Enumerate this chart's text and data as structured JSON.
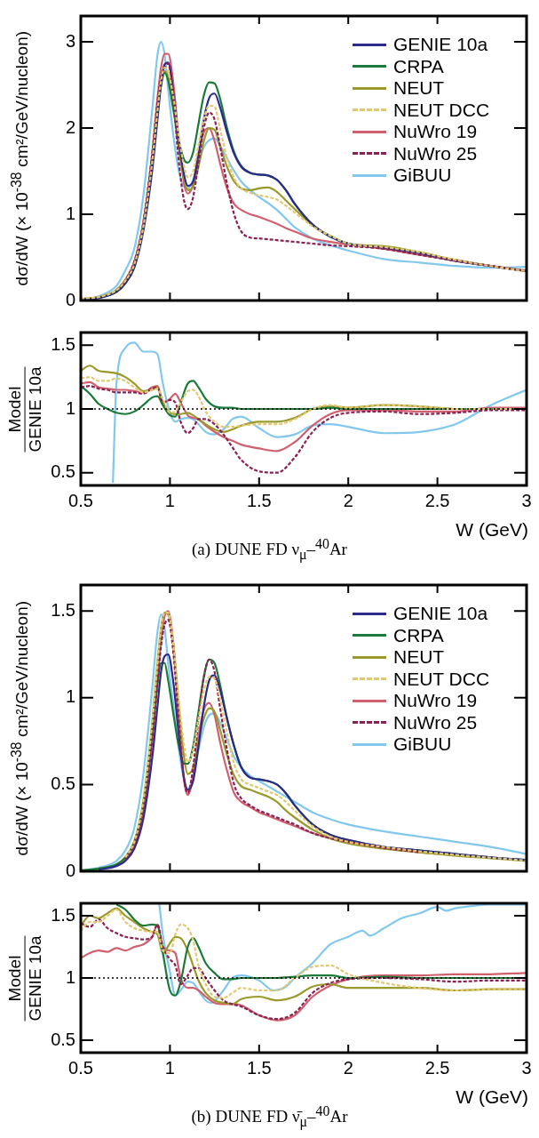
{
  "chart_data": [
    {
      "type": "line",
      "ylabel": "dσ/dW (× 10$^{-38}$ cm²/GeV/nucleon)",
      "x": [
        0.5,
        0.6,
        0.7,
        0.75,
        0.8,
        0.85,
        0.9,
        0.93,
        0.95,
        0.97,
        0.99,
        1.02,
        1.05,
        1.08,
        1.1,
        1.13,
        1.16,
        1.19,
        1.22,
        1.25,
        1.28,
        1.32,
        1.36,
        1.4,
        1.45,
        1.5,
        1.55,
        1.6,
        1.65,
        1.7,
        1.8,
        1.9,
        2.0,
        2.2,
        2.4,
        2.6,
        2.8,
        3.0
      ],
      "xlim": [
        0.5,
        3
      ],
      "xticks": [
        0.5,
        1,
        1.5,
        2,
        2.5,
        3
      ],
      "ylim": [
        0,
        3.3
      ],
      "yticks": [
        0,
        1,
        2,
        3
      ],
      "tick_labels": "y",
      "legend": "top right",
      "series": [
        {
          "name": "GENIE 10a",
          "color": "#2b2a8a",
          "line_style": "solid",
          "values": [
            0.01,
            0.03,
            0.1,
            0.2,
            0.38,
            0.8,
            1.5,
            2.1,
            2.5,
            2.74,
            2.76,
            2.4,
            1.85,
            1.45,
            1.33,
            1.38,
            1.7,
            2.1,
            2.35,
            2.4,
            2.25,
            1.95,
            1.7,
            1.55,
            1.48,
            1.46,
            1.45,
            1.4,
            1.28,
            1.12,
            0.88,
            0.74,
            0.66,
            0.61,
            0.55,
            0.46,
            0.4,
            0.34
          ]
        },
        {
          "name": "CRPA",
          "color": "#1b7a3a",
          "line_style": "solid",
          "values": [
            0.01,
            0.03,
            0.1,
            0.2,
            0.4,
            0.85,
            1.6,
            2.2,
            2.5,
            2.64,
            2.55,
            2.2,
            1.85,
            1.63,
            1.6,
            1.72,
            2.05,
            2.38,
            2.53,
            2.52,
            2.35,
            2.0,
            1.72,
            1.56,
            1.48,
            1.46,
            1.45,
            1.4,
            1.28,
            1.12,
            0.88,
            0.74,
            0.66,
            0.61,
            0.55,
            0.46,
            0.4,
            0.34
          ]
        },
        {
          "name": "NEUT",
          "color": "#9a9a2c",
          "line_style": "solid",
          "values": [
            0.02,
            0.04,
            0.12,
            0.23,
            0.42,
            0.85,
            1.6,
            2.2,
            2.5,
            2.66,
            2.6,
            2.25,
            1.75,
            1.4,
            1.28,
            1.32,
            1.55,
            1.85,
            2.0,
            1.98,
            1.8,
            1.55,
            1.38,
            1.3,
            1.28,
            1.3,
            1.31,
            1.26,
            1.16,
            1.06,
            0.87,
            0.75,
            0.66,
            0.63,
            0.56,
            0.47,
            0.4,
            0.34
          ]
        },
        {
          "name": "NEUT DCC",
          "color": "#e3c870",
          "line_style": "dashed",
          "values": [
            0.02,
            0.04,
            0.12,
            0.23,
            0.42,
            0.85,
            1.6,
            2.2,
            2.55,
            2.7,
            2.65,
            2.35,
            1.9,
            1.55,
            1.43,
            1.5,
            1.8,
            2.1,
            2.26,
            2.25,
            2.0,
            1.65,
            1.42,
            1.3,
            1.25,
            1.22,
            1.2,
            1.17,
            1.1,
            1.02,
            0.86,
            0.75,
            0.66,
            0.62,
            0.56,
            0.47,
            0.4,
            0.34
          ]
        },
        {
          "name": "NuWro 19",
          "color": "#d0606e",
          "line_style": "solid",
          "values": [
            0.01,
            0.04,
            0.12,
            0.24,
            0.45,
            0.9,
            1.7,
            2.35,
            2.7,
            2.86,
            2.86,
            2.5,
            1.85,
            1.35,
            1.24,
            1.35,
            1.7,
            1.95,
            2.0,
            1.85,
            1.6,
            1.3,
            1.12,
            1.05,
            1.0,
            0.97,
            0.93,
            0.89,
            0.84,
            0.8,
            0.72,
            0.68,
            0.65,
            0.6,
            0.53,
            0.47,
            0.4,
            0.35
          ]
        },
        {
          "name": "NuWro 25",
          "color": "#8a2152",
          "line_style": "dashed",
          "values": [
            null,
            null,
            0.12,
            0.24,
            0.45,
            0.9,
            1.7,
            2.3,
            2.6,
            2.7,
            2.75,
            2.3,
            1.6,
            1.15,
            1.06,
            1.2,
            1.6,
            2.0,
            2.18,
            2.1,
            1.8,
            1.35,
            1.0,
            0.8,
            0.73,
            0.72,
            0.71,
            0.7,
            0.69,
            0.68,
            0.66,
            0.64,
            0.63,
            0.6,
            0.53,
            0.46,
            0.4,
            0.34
          ]
        },
        {
          "name": "GiBUU",
          "color": "#82c8ee",
          "line_style": "solid",
          "values": [
            0.01,
            0.05,
            0.17,
            0.35,
            0.6,
            1.2,
            2.2,
            2.85,
            3.0,
            2.85,
            2.45,
            1.9,
            1.5,
            1.32,
            1.3,
            1.4,
            1.6,
            1.78,
            1.86,
            1.88,
            1.8,
            1.65,
            1.5,
            1.38,
            1.28,
            1.2,
            1.13,
            1.05,
            0.95,
            0.85,
            0.72,
            0.64,
            0.58,
            0.48,
            0.44,
            0.4,
            0.38,
            0.39
          ]
        }
      ]
    },
    {
      "type": "line",
      "ylabel": "Model\nGENIE 10a",
      "xlabel": "W (GeV)",
      "annotations": [
        "(a) DUNE FD ν$_{μ}$–$^{40}$Ar"
      ],
      "x": [
        0.5,
        0.55,
        0.6,
        0.65,
        0.7,
        0.75,
        0.8,
        0.85,
        0.9,
        0.93,
        0.96,
        1.0,
        1.03,
        1.06,
        1.1,
        1.13,
        1.16,
        1.2,
        1.25,
        1.3,
        1.35,
        1.4,
        1.5,
        1.6,
        1.7,
        1.8,
        1.9,
        2.0,
        2.2,
        2.4,
        2.6,
        2.8,
        3.0
      ],
      "xlim": [
        0.5,
        3
      ],
      "xticks": [
        0.5,
        1,
        1.5,
        2,
        2.5,
        3
      ],
      "ylim": [
        0.4,
        1.6
      ],
      "yticks": [
        0.5,
        1,
        1.5
      ],
      "ref_lines": [
        {
          "axis": "y",
          "value": 1,
          "color": "#000000",
          "line_style": "dotted"
        }
      ],
      "series": [
        {
          "color": "#1b7a3a",
          "line_style": "solid",
          "values": [
            1.18,
            1.12,
            1.04,
            1.0,
            0.97,
            0.96,
            0.98,
            1.03,
            1.09,
            1.1,
            1.03,
            0.95,
            0.94,
            1.05,
            1.2,
            1.22,
            1.17,
            1.08,
            1.02,
            1.01,
            1.01,
            1.0,
            1.0,
            1.0,
            1.0,
            1.0,
            1.01,
            1.0,
            1.0,
            1.0,
            1.0,
            1.0,
            1.0
          ]
        },
        {
          "color": "#9a9a2c",
          "line_style": "solid",
          "values": [
            1.3,
            1.34,
            1.3,
            1.29,
            1.28,
            1.25,
            1.2,
            1.14,
            1.15,
            1.17,
            1.05,
            0.97,
            0.96,
            0.96,
            0.97,
            0.95,
            0.92,
            0.88,
            0.84,
            0.82,
            0.84,
            0.87,
            0.9,
            0.9,
            0.93,
            1.0,
            1.02,
            1.01,
            1.03,
            1.02,
            1.0,
            1.0,
            1.0
          ]
        },
        {
          "color": "#e3c870",
          "line_style": "dashed",
          "values": [
            1.24,
            1.25,
            1.22,
            1.22,
            1.24,
            1.22,
            1.17,
            1.13,
            1.15,
            1.16,
            1.08,
            0.97,
            0.98,
            1.05,
            1.14,
            1.15,
            1.1,
            0.98,
            0.9,
            0.86,
            0.86,
            0.87,
            0.88,
            0.88,
            0.92,
            1.0,
            1.03,
            1.01,
            1.03,
            1.02,
            1.0,
            1.0,
            1.0
          ]
        },
        {
          "color": "#d0606e",
          "line_style": "solid",
          "values": [
            1.2,
            1.21,
            1.17,
            1.16,
            1.15,
            1.15,
            1.14,
            1.13,
            1.17,
            1.18,
            1.05,
            1.08,
            1.12,
            1.05,
            0.95,
            0.93,
            0.92,
            0.87,
            0.82,
            0.78,
            0.75,
            0.72,
            0.69,
            0.67,
            0.74,
            0.87,
            0.96,
            0.99,
            0.99,
            0.98,
            0.98,
            1.01,
            1.01
          ]
        },
        {
          "color": "#8a2152",
          "line_style": "dashed",
          "values": [
            1.17,
            1.18,
            1.16,
            1.15,
            1.13,
            1.13,
            1.13,
            1.12,
            1.16,
            1.17,
            1.05,
            1.07,
            1.05,
            0.9,
            0.81,
            0.85,
            0.92,
            0.92,
            0.88,
            0.8,
            0.7,
            0.6,
            0.51,
            0.5,
            0.62,
            0.82,
            0.93,
            0.97,
            0.98,
            0.96,
            0.97,
            0.99,
            0.99
          ]
        },
        {
          "color": "#82c8ee",
          "line_style": "solid",
          "x": [
            0.68,
            0.7,
            0.75,
            0.8,
            0.85,
            0.9,
            0.93,
            0.96,
            1.0,
            1.03,
            1.06,
            1.1,
            1.13,
            1.16,
            1.2,
            1.25,
            1.3,
            1.35,
            1.4,
            1.5,
            1.6,
            1.7,
            1.8,
            1.9,
            2.0,
            2.2,
            2.4,
            2.6,
            2.8,
            3.0
          ],
          "values": [
            0.42,
            1.2,
            1.48,
            1.52,
            1.45,
            1.45,
            1.43,
            1.2,
            0.97,
            0.9,
            0.92,
            0.93,
            0.92,
            0.88,
            0.82,
            0.8,
            0.84,
            0.92,
            0.94,
            0.85,
            0.78,
            0.8,
            0.87,
            0.88,
            0.86,
            0.81,
            0.82,
            0.88,
            1.03,
            1.15
          ]
        }
      ]
    },
    {
      "type": "line",
      "ylabel": "dσ/dW (× 10$^{-38}$ cm²/GeV/nucleon)",
      "x": [
        0.5,
        0.6,
        0.7,
        0.75,
        0.8,
        0.85,
        0.9,
        0.93,
        0.95,
        0.97,
        0.99,
        1.02,
        1.05,
        1.08,
        1.1,
        1.13,
        1.16,
        1.19,
        1.22,
        1.25,
        1.28,
        1.32,
        1.36,
        1.4,
        1.45,
        1.5,
        1.55,
        1.6,
        1.65,
        1.7,
        1.8,
        1.9,
        2.0,
        2.2,
        2.4,
        2.6,
        2.8,
        3.0
      ],
      "xlim": [
        0.5,
        3
      ],
      "xticks": [
        0.5,
        1,
        1.5,
        2,
        2.5,
        3
      ],
      "ylim": [
        0,
        1.65
      ],
      "yticks": [
        0,
        0.5,
        1,
        1.5
      ],
      "tick_labels": "y",
      "legend": "top right",
      "series": [
        {
          "name": "GENIE 10a",
          "color": "#2b2a8a",
          "line_style": "solid",
          "values": [
            null,
            0.01,
            0.03,
            0.06,
            0.13,
            0.3,
            0.65,
            0.95,
            1.15,
            1.24,
            1.25,
            1.08,
            0.78,
            0.53,
            0.47,
            0.52,
            0.72,
            0.95,
            1.1,
            1.13,
            1.05,
            0.88,
            0.72,
            0.6,
            0.54,
            0.53,
            0.52,
            0.5,
            0.45,
            0.38,
            0.27,
            0.21,
            0.18,
            0.14,
            0.12,
            0.1,
            0.08,
            0.065
          ]
        },
        {
          "name": "CRPA",
          "color": "#1b7a3a",
          "line_style": "solid",
          "values": [
            0.005,
            0.015,
            0.04,
            0.08,
            0.17,
            0.38,
            0.8,
            1.08,
            1.2,
            1.2,
            1.1,
            0.9,
            0.72,
            0.62,
            0.62,
            0.72,
            0.92,
            1.12,
            1.22,
            1.2,
            1.08,
            0.88,
            0.72,
            0.6,
            0.54,
            0.53,
            0.52,
            0.5,
            0.45,
            0.38,
            0.27,
            0.21,
            0.18,
            0.14,
            0.12,
            0.1,
            0.08,
            0.065
          ]
        },
        {
          "name": "NEUT",
          "color": "#9a9a2c",
          "line_style": "solid",
          "values": [
            0.005,
            0.015,
            0.04,
            0.08,
            0.17,
            0.4,
            0.85,
            1.2,
            1.4,
            1.49,
            1.48,
            1.3,
            0.95,
            0.65,
            0.56,
            0.6,
            0.75,
            0.88,
            0.94,
            0.92,
            0.82,
            0.67,
            0.55,
            0.49,
            0.47,
            0.45,
            0.43,
            0.4,
            0.35,
            0.31,
            0.24,
            0.19,
            0.16,
            0.13,
            0.11,
            0.09,
            0.075,
            0.06
          ]
        },
        {
          "name": "NEUT DCC",
          "color": "#e3c870",
          "line_style": "dashed",
          "values": [
            null,
            null,
            null,
            0.08,
            0.17,
            0.4,
            0.85,
            1.2,
            1.4,
            1.49,
            1.49,
            1.3,
            0.98,
            0.72,
            0.63,
            0.7,
            0.88,
            1.04,
            1.12,
            1.11,
            1.0,
            0.8,
            0.62,
            0.53,
            0.5,
            0.48,
            0.46,
            0.44,
            0.4,
            0.35,
            0.26,
            0.2,
            0.17,
            0.14,
            0.115,
            0.095,
            0.078,
            0.062
          ]
        },
        {
          "name": "NuWro 19",
          "color": "#d0606e",
          "line_style": "solid",
          "values": [
            null,
            null,
            0.035,
            0.07,
            0.15,
            0.35,
            0.75,
            1.1,
            1.33,
            1.47,
            1.5,
            1.3,
            0.88,
            0.52,
            0.44,
            0.55,
            0.78,
            0.93,
            0.97,
            0.9,
            0.75,
            0.58,
            0.45,
            0.4,
            0.37,
            0.34,
            0.32,
            0.3,
            0.28,
            0.26,
            0.22,
            0.19,
            0.17,
            0.135,
            0.11,
            0.095,
            null,
            null
          ]
        },
        {
          "name": "NuWro 25",
          "color": "#8a2152",
          "line_style": "dashed",
          "values": [
            null,
            null,
            null,
            0.07,
            0.15,
            0.35,
            0.75,
            1.08,
            1.3,
            1.42,
            1.45,
            1.25,
            0.85,
            0.52,
            0.45,
            0.6,
            0.88,
            1.12,
            1.22,
            1.15,
            0.95,
            0.7,
            0.5,
            0.42,
            0.38,
            0.35,
            0.33,
            0.31,
            0.29,
            0.27,
            0.22,
            0.19,
            0.17,
            0.135,
            0.11,
            null,
            null,
            null
          ]
        },
        {
          "name": "GiBUU",
          "color": "#82c8ee",
          "line_style": "solid",
          "values": [
            0.005,
            0.02,
            0.06,
            0.12,
            0.25,
            0.55,
            1.05,
            1.38,
            1.48,
            1.4,
            1.2,
            0.95,
            0.7,
            0.52,
            0.47,
            0.55,
            0.7,
            0.83,
            0.9,
            0.91,
            0.86,
            0.76,
            0.66,
            0.6,
            0.55,
            0.52,
            0.49,
            0.46,
            0.43,
            0.4,
            0.34,
            0.3,
            0.27,
            0.23,
            0.2,
            0.17,
            0.14,
            0.1
          ]
        }
      ]
    },
    {
      "type": "line",
      "ylabel": "Model\nGENIE 10a",
      "xlabel": "W (GeV)",
      "annotations": [
        "(b) DUNE FD ν̄$_{μ}$–$^{40}$Ar"
      ],
      "x": [
        0.5,
        0.55,
        0.6,
        0.65,
        0.7,
        0.75,
        0.8,
        0.85,
        0.9,
        0.93,
        0.96,
        1.0,
        1.03,
        1.06,
        1.1,
        1.13,
        1.16,
        1.2,
        1.25,
        1.3,
        1.35,
        1.4,
        1.5,
        1.6,
        1.7,
        1.8,
        1.9,
        2.0,
        2.2,
        2.4,
        2.6,
        2.8,
        3.0
      ],
      "xlim": [
        0.5,
        3
      ],
      "xticks": [
        0.5,
        1,
        1.5,
        2,
        2.5,
        3
      ],
      "ylim": [
        0.4,
        1.6
      ],
      "yticks": [
        0.5,
        1,
        1.5
      ],
      "ref_lines": [
        {
          "axis": "y",
          "value": 1,
          "color": "#000000",
          "line_style": "dotted"
        }
      ],
      "series": [
        {
          "color": "#1b7a3a",
          "line_style": "solid",
          "values": [
            null,
            null,
            null,
            null,
            1.59,
            1.55,
            1.47,
            1.42,
            1.43,
            1.42,
            1.2,
            0.9,
            0.86,
            0.97,
            1.25,
            1.32,
            1.25,
            1.12,
            1.04,
            0.99,
            0.99,
            1.0,
            1.0,
            1.0,
            1.01,
            1.02,
            1.02,
            1.0,
            1.01,
            1.0,
            1.0,
            1.0,
            1.0
          ]
        },
        {
          "color": "#9a9a2c",
          "line_style": "solid",
          "values": [
            1.42,
            1.5,
            1.48,
            1.52,
            1.56,
            1.5,
            1.45,
            1.4,
            1.37,
            1.35,
            1.2,
            1.28,
            1.33,
            1.32,
            1.22,
            1.1,
            0.98,
            0.88,
            0.82,
            0.8,
            0.79,
            0.83,
            0.85,
            0.82,
            0.85,
            0.93,
            0.95,
            0.92,
            0.92,
            0.92,
            0.9,
            0.91,
            0.91
          ]
        },
        {
          "color": "#e3c870",
          "line_style": "dashed",
          "values": [
            1.38,
            1.45,
            1.45,
            1.5,
            1.55,
            1.45,
            1.4,
            1.38,
            1.37,
            1.37,
            1.22,
            1.2,
            1.35,
            1.43,
            1.4,
            1.3,
            1.1,
            0.95,
            0.85,
            0.84,
            0.88,
            0.92,
            0.9,
            0.9,
            1.0,
            1.09,
            1.1,
            1.03,
            0.96,
            0.92,
            0.9,
            0.91,
            0.91
          ]
        },
        {
          "color": "#d0606e",
          "line_style": "solid",
          "values": [
            1.16,
            1.2,
            1.22,
            1.21,
            1.24,
            1.22,
            1.25,
            1.27,
            1.33,
            1.43,
            1.25,
            1.22,
            1.2,
            1.0,
            0.92,
            0.92,
            0.9,
            0.85,
            0.8,
            0.79,
            0.79,
            0.78,
            0.7,
            0.66,
            0.7,
            0.85,
            0.94,
            0.99,
            1.02,
            1.02,
            1.03,
            1.03,
            1.04
          ]
        },
        {
          "color": "#8a2152",
          "line_style": "dashed",
          "values": [
            1.44,
            1.41,
            1.47,
            1.4,
            1.36,
            1.33,
            1.32,
            1.31,
            1.33,
            1.43,
            1.25,
            1.15,
            1.1,
            0.95,
            1.02,
            1.08,
            1.08,
            1.0,
            0.9,
            0.82,
            0.79,
            0.77,
            0.7,
            0.67,
            0.72,
            0.88,
            0.96,
            0.99,
            1.0,
            0.99,
            0.97,
            0.98,
            0.98
          ]
        },
        {
          "color": "#82c8ee",
          "line_style": "solid",
          "x": [
            0.94,
            0.96,
            1.0,
            1.03,
            1.06,
            1.1,
            1.13,
            1.16,
            1.2,
            1.23,
            1.3,
            1.35,
            1.4,
            1.5,
            1.58,
            1.65,
            1.7,
            1.8,
            1.9,
            2.0,
            2.08,
            2.12,
            2.2,
            2.3,
            2.4,
            2.5,
            2.55,
            2.6,
            2.7,
            2.8,
            3.0
          ],
          "values": [
            1.6,
            1.35,
            1.05,
            0.86,
            0.9,
            0.97,
            0.96,
            0.9,
            0.82,
            0.8,
            0.9,
            1.0,
            1.02,
            0.98,
            0.9,
            0.93,
            1.0,
            1.12,
            1.27,
            1.33,
            1.38,
            1.34,
            1.4,
            1.48,
            1.52,
            1.57,
            1.54,
            1.56,
            1.58,
            1.59,
            1.59
          ]
        }
      ]
    }
  ]
}
